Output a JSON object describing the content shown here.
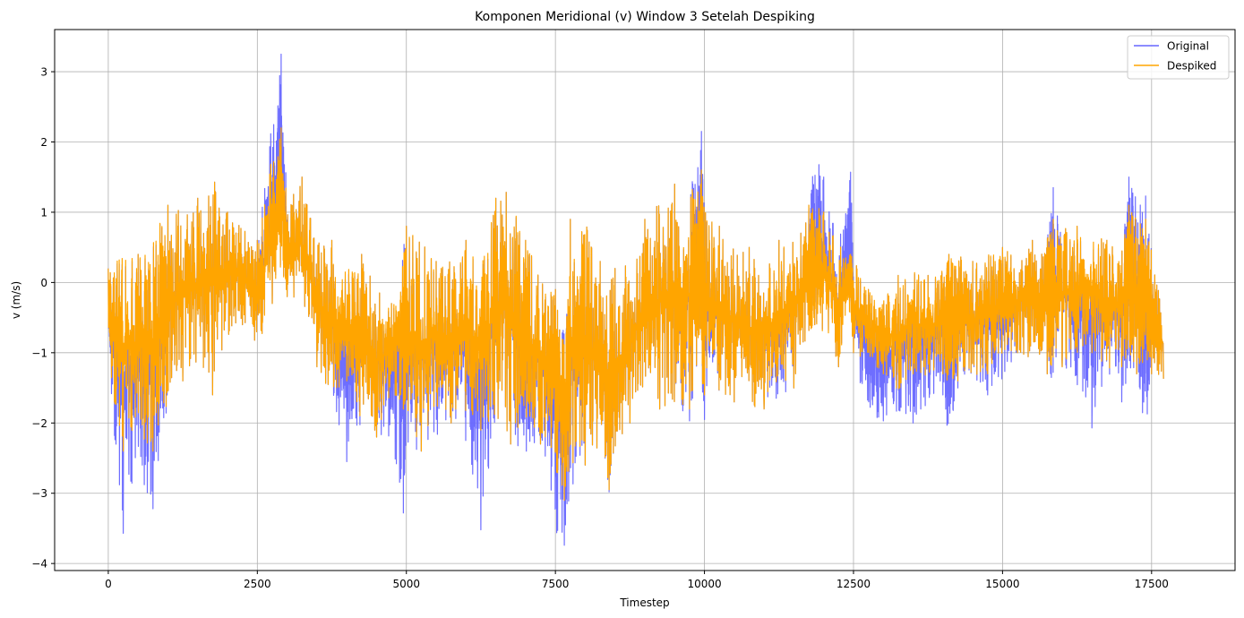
{
  "chart_data": {
    "type": "line",
    "title": "Komponen Meridional (v) Window 3 Setelah Despiking",
    "xlabel": "Timestep",
    "ylabel": "v (m/s)",
    "xlim": [
      -900,
      18900
    ],
    "ylim": [
      -4.1,
      3.6
    ],
    "xticks": [
      0,
      2500,
      5000,
      7500,
      10000,
      12500,
      15000,
      17500
    ],
    "xtick_labels": [
      "0",
      "2500",
      "5000",
      "7500",
      "10000",
      "12500",
      "15000",
      "17500"
    ],
    "yticks": [
      -4,
      -3,
      -2,
      -1,
      0,
      1,
      2,
      3
    ],
    "ytick_labels": [
      "−4",
      "−3",
      "−2",
      "−1",
      "0",
      "1",
      "2",
      "3"
    ],
    "grid": true,
    "legend_position": "top-right",
    "series": [
      {
        "name": "Original",
        "color": "#6666ff",
        "envelope": {
          "x": [
            0,
            250,
            500,
            750,
            1000,
            1250,
            1500,
            1750,
            2000,
            2250,
            2500,
            2750,
            2900,
            3000,
            3250,
            3500,
            3750,
            4000,
            4250,
            4500,
            4750,
            4950,
            5000,
            5250,
            5500,
            5750,
            6000,
            6250,
            6500,
            6750,
            7000,
            7250,
            7500,
            7650,
            7750,
            8000,
            8250,
            8400,
            8500,
            8750,
            9000,
            9250,
            9500,
            9750,
            9950,
            10000,
            10250,
            10500,
            10750,
            11000,
            11250,
            11500,
            11750,
            11850,
            12000,
            12250,
            12450,
            12500,
            12750,
            13000,
            13250,
            13500,
            13750,
            14000,
            14100,
            14250,
            14500,
            14750,
            15000,
            15250,
            15500,
            15750,
            15850,
            16000,
            16250,
            16500,
            16750,
            17000,
            17120,
            17250,
            17400,
            17500,
            17700
          ],
          "high": [
            0.2,
            0.6,
            0.4,
            0.8,
            1.1,
            1.2,
            1.2,
            1.8,
            1.0,
            0.9,
            0.6,
            2.4,
            3.25,
            1.3,
            1.5,
            0.7,
            0.6,
            0.3,
            0.4,
            0.0,
            -0.3,
            0.6,
            0.8,
            0.7,
            0.3,
            0.4,
            0.6,
            0.3,
            1.2,
            1.6,
            0.6,
            0.3,
            -0.1,
            -0.6,
            0.9,
            1.0,
            0.3,
            0.2,
            0.2,
            0.4,
            0.9,
            1.3,
            1.4,
            1.5,
            2.15,
            1.1,
            0.8,
            0.6,
            0.5,
            0.4,
            0.6,
            0.9,
            1.1,
            1.97,
            1.5,
            0.6,
            1.57,
            0.4,
            -0.1,
            -0.2,
            0.1,
            0.2,
            0.1,
            0.3,
            0.4,
            0.6,
            0.3,
            0.5,
            0.5,
            0.5,
            0.6,
            0.7,
            1.35,
            0.9,
            0.8,
            0.8,
            0.6,
            0.5,
            1.5,
            1.3,
            1.23,
            0.5,
            -0.4
          ],
          "low": [
            -1.3,
            -3.57,
            -2.87,
            -3.22,
            -1.8,
            -1.4,
            -1.2,
            -1.6,
            -0.8,
            -0.6,
            -1.0,
            -0.3,
            0.2,
            -0.2,
            -0.4,
            -1.2,
            -1.7,
            -2.55,
            -2.1,
            -2.2,
            -2.3,
            -3.28,
            -2.9,
            -2.4,
            -2.25,
            -2.0,
            -2.35,
            -3.52,
            -2.0,
            -2.3,
            -2.77,
            -2.3,
            -3.76,
            -3.74,
            -3.3,
            -2.6,
            -2.5,
            -2.98,
            -2.6,
            -2.0,
            -1.9,
            -1.8,
            -1.9,
            -1.97,
            -1.5,
            -1.95,
            -1.7,
            -1.7,
            -1.9,
            -1.8,
            -1.92,
            -1.5,
            -0.9,
            -0.6,
            -0.8,
            -1.2,
            -0.5,
            -1.0,
            -2.07,
            -1.97,
            -1.9,
            -2.0,
            -1.8,
            -1.6,
            -2.33,
            -1.5,
            -1.4,
            -1.6,
            -1.5,
            -1.0,
            -1.2,
            -1.3,
            -1.47,
            -1.2,
            -1.58,
            -2.07,
            -1.3,
            -1.7,
            -1.5,
            -1.3,
            -2.37,
            -1.3,
            -1.37
          ]
        }
      },
      {
        "name": "Despiked",
        "color": "#ffa500",
        "envelope": {
          "x": [
            0,
            250,
            500,
            750,
            1000,
            1250,
            1500,
            1750,
            2000,
            2250,
            2500,
            2750,
            2900,
            3000,
            3250,
            3500,
            3750,
            4000,
            4250,
            4500,
            4750,
            4950,
            5000,
            5250,
            5500,
            5750,
            6000,
            6250,
            6500,
            6750,
            7000,
            7250,
            7500,
            7650,
            7750,
            8000,
            8250,
            8400,
            8500,
            8750,
            9000,
            9250,
            9500,
            9750,
            9950,
            10000,
            10250,
            10500,
            10750,
            11000,
            11250,
            11500,
            11750,
            11850,
            12000,
            12250,
            12450,
            12500,
            12750,
            13000,
            13250,
            13500,
            13750,
            14000,
            14100,
            14250,
            14500,
            14750,
            15000,
            15250,
            15500,
            15750,
            15850,
            16000,
            16250,
            16500,
            16750,
            17000,
            17120,
            17250,
            17400,
            17500,
            17700
          ],
          "high": [
            0.2,
            0.6,
            0.4,
            0.8,
            1.1,
            1.2,
            1.2,
            1.8,
            1.0,
            0.9,
            0.6,
            1.9,
            2.2,
            1.3,
            1.5,
            0.7,
            0.6,
            0.3,
            0.4,
            0.0,
            -0.3,
            0.4,
            0.8,
            0.7,
            0.3,
            0.4,
            0.6,
            0.3,
            1.2,
            1.6,
            0.6,
            0.3,
            -0.1,
            -0.8,
            0.9,
            1.0,
            0.3,
            0.2,
            0.2,
            0.4,
            0.9,
            1.3,
            1.4,
            1.5,
            1.6,
            1.1,
            0.8,
            0.6,
            0.5,
            0.4,
            0.6,
            0.9,
            1.1,
            1.2,
            1.0,
            0.6,
            0.4,
            0.4,
            -0.1,
            -0.2,
            0.1,
            0.2,
            0.1,
            0.3,
            0.4,
            0.6,
            0.3,
            0.5,
            0.5,
            0.5,
            0.6,
            0.7,
            0.9,
            0.9,
            0.8,
            0.8,
            0.6,
            0.5,
            1.1,
            1.0,
            0.9,
            0.5,
            -0.4
          ],
          "low": [
            -1.3,
            -2.4,
            -2.3,
            -2.4,
            -1.8,
            -1.4,
            -1.2,
            -1.6,
            -0.8,
            -0.6,
            -1.0,
            -0.3,
            0.2,
            -0.2,
            -0.4,
            -1.2,
            -1.7,
            -1.4,
            -2.1,
            -2.2,
            -1.6,
            -1.8,
            -2.3,
            -2.4,
            -1.8,
            -2.0,
            -1.9,
            -2.1,
            -2.0,
            -2.3,
            -2.2,
            -2.3,
            -2.8,
            -3.1,
            -2.9,
            -2.6,
            -2.5,
            -2.95,
            -2.6,
            -2.0,
            -1.9,
            -1.8,
            -1.9,
            -1.8,
            -1.5,
            -1.6,
            -1.7,
            -1.7,
            -1.9,
            -1.8,
            -1.6,
            -1.5,
            -0.9,
            -0.6,
            -0.8,
            -1.2,
            -0.5,
            -1.0,
            -1.2,
            -1.3,
            -1.6,
            -1.3,
            -1.4,
            -1.3,
            -1.5,
            -1.4,
            -1.4,
            -1.3,
            -1.1,
            -1.0,
            -1.2,
            -1.3,
            -1.2,
            -1.2,
            -1.1,
            -1.0,
            -1.3,
            -1.2,
            -1.2,
            -1.3,
            -1.2,
            -1.3,
            -1.37
          ]
        }
      }
    ]
  }
}
